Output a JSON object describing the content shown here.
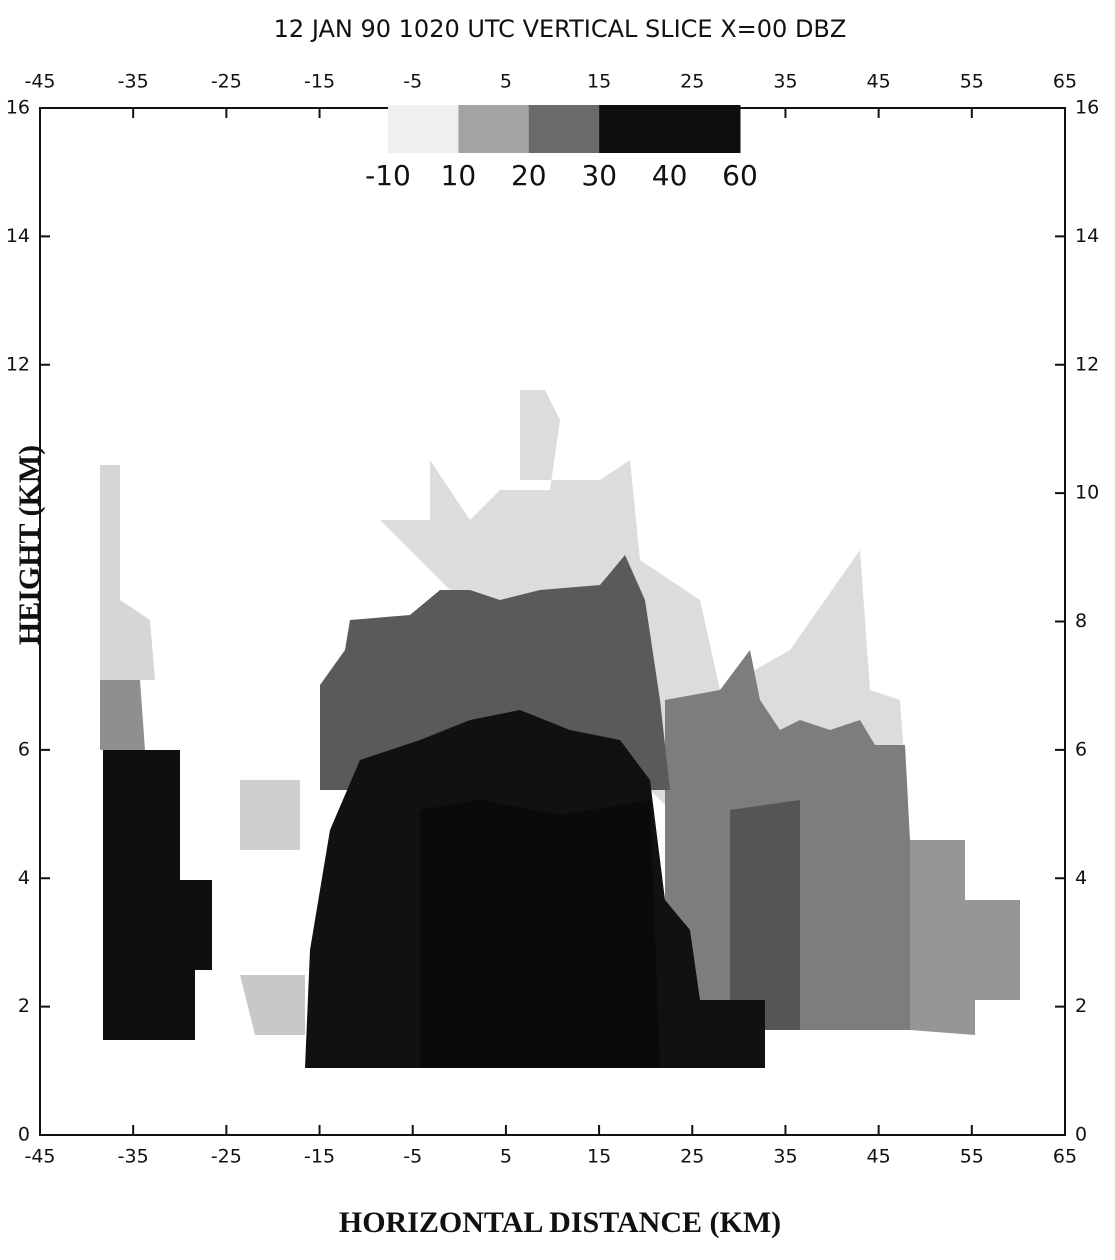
{
  "chart_data": {
    "type": "contour",
    "title": "12 JAN 90 1020 UTC VERTICAL SLICE X=00 DBZ",
    "x_label": "HORIZONTAL DISTANCE   (KM)",
    "y_label": "HEIGHT (KM)",
    "xlim": [
      -45,
      65
    ],
    "xticks": [
      -45,
      -35,
      -25,
      -15,
      -5,
      5,
      15,
      25,
      35,
      45,
      55,
      65
    ],
    "ylim": [
      0,
      16
    ],
    "yticks": [
      0,
      2,
      4,
      6,
      12,
      14,
      16
    ],
    "y2lim": [
      0,
      16
    ],
    "y2ticks": [
      0,
      2,
      4,
      6,
      8,
      10,
      12,
      14,
      16
    ],
    "colorbar": {
      "levels": [
        -10,
        10,
        20,
        30,
        40,
        60
      ],
      "colors": [
        "#efefef",
        "#a3a3a3",
        "#6a6a6a",
        "#0e0e0e",
        "#0e0e0e"
      ]
    }
  }
}
